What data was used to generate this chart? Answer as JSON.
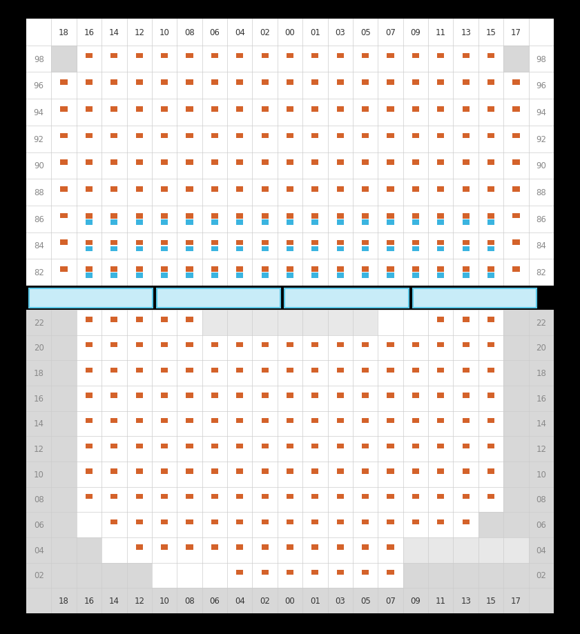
{
  "background": "#000000",
  "orange": "#d4622a",
  "blue": "#3ab4e0",
  "white": "#ffffff",
  "gray_bg": "#d8d8d8",
  "light_gray": "#e8e8e8",
  "grid_line": "#cccccc",
  "label_color": "#888888",
  "sep_bg": "#c8ecf8",
  "sep_border": "#5bc8e8",
  "col_labels": [
    "18",
    "16",
    "14",
    "12",
    "10",
    "08",
    "06",
    "04",
    "02",
    "00",
    "01",
    "03",
    "05",
    "07",
    "09",
    "11",
    "13",
    "15",
    "17"
  ],
  "top_rows": [
    "98",
    "96",
    "94",
    "92",
    "90",
    "88",
    "86",
    "84",
    "82"
  ],
  "bot_rows": [
    "22",
    "20",
    "18",
    "16",
    "14",
    "12",
    "10",
    "08",
    "06",
    "04",
    "02"
  ],
  "top_orange": {
    "98": [
      1,
      2,
      3,
      4,
      5,
      6,
      7,
      8,
      9,
      10,
      11,
      12,
      13,
      14,
      15,
      16,
      17
    ],
    "96": [
      0,
      1,
      2,
      3,
      4,
      5,
      6,
      7,
      8,
      9,
      10,
      11,
      12,
      13,
      14,
      15,
      16,
      17,
      18
    ],
    "94": [
      0,
      1,
      2,
      3,
      4,
      5,
      6,
      7,
      8,
      9,
      10,
      11,
      12,
      13,
      14,
      15,
      16,
      17,
      18
    ],
    "92": [
      0,
      1,
      2,
      3,
      4,
      5,
      6,
      7,
      8,
      9,
      10,
      11,
      12,
      13,
      14,
      15,
      16,
      17,
      18
    ],
    "90": [
      0,
      1,
      2,
      3,
      4,
      5,
      6,
      7,
      8,
      9,
      10,
      11,
      12,
      13,
      14,
      15,
      16,
      17,
      18
    ],
    "88": [
      0,
      1,
      2,
      3,
      4,
      5,
      6,
      7,
      8,
      9,
      10,
      11,
      12,
      13,
      14,
      15,
      16,
      17,
      18
    ],
    "86": [
      0,
      1,
      2,
      3,
      4,
      5,
      6,
      7,
      8,
      9,
      10,
      11,
      12,
      13,
      14,
      15,
      16,
      17,
      18
    ],
    "84": [
      0,
      1,
      2,
      3,
      4,
      5,
      6,
      7,
      8,
      9,
      10,
      11,
      12,
      13,
      14,
      15,
      16,
      17,
      18
    ],
    "82": [
      0,
      1,
      2,
      3,
      4,
      5,
      6,
      7,
      8,
      9,
      10,
      11,
      12,
      13,
      14,
      15,
      16,
      17,
      18
    ]
  },
  "top_blue": {
    "86": [
      1,
      2,
      3,
      4,
      5,
      6,
      7,
      8,
      9,
      10,
      11,
      12,
      13,
      14,
      15,
      16,
      17
    ],
    "84": [
      1,
      2,
      3,
      4,
      5,
      6,
      7,
      8,
      9,
      10,
      11,
      12,
      13,
      14,
      15,
      16,
      17
    ],
    "82": [
      1,
      2,
      3,
      4,
      5,
      6,
      7,
      8,
      9,
      10,
      11,
      12,
      13,
      14,
      15,
      16,
      17
    ]
  },
  "top_gray_cells": {
    "98": [
      0,
      18
    ]
  },
  "bot_gray_left": {
    "22": 1,
    "20": 1,
    "18": 1,
    "16": 1,
    "14": 1,
    "12": 1,
    "10": 1,
    "08": 1,
    "06": 1,
    "04": 2,
    "02": 4
  },
  "bot_gray_right": {
    "22": 1,
    "20": 1,
    "18": 1,
    "16": 1,
    "14": 1,
    "12": 1,
    "10": 1,
    "08": 1,
    "06": 2,
    "04": 3,
    "02": 5
  },
  "bot_light_middle": {
    "22": [
      6,
      7,
      8,
      9,
      10,
      11,
      12
    ],
    "20": [],
    "18": [],
    "16": [],
    "14": [],
    "12": [],
    "10": [],
    "08": [],
    "06": [],
    "04": [
      14,
      15,
      16,
      17,
      18
    ],
    "02": []
  },
  "bot_orange": {
    "22": [
      1,
      2,
      3,
      4,
      5,
      15,
      16,
      17
    ],
    "20": [
      1,
      2,
      3,
      4,
      5,
      6,
      7,
      8,
      9,
      10,
      11,
      12,
      13,
      14,
      15,
      16,
      17
    ],
    "18": [
      1,
      2,
      3,
      4,
      5,
      6,
      7,
      8,
      9,
      10,
      11,
      12,
      13,
      14,
      15,
      16,
      17
    ],
    "16": [
      1,
      2,
      3,
      4,
      5,
      6,
      7,
      8,
      9,
      10,
      11,
      12,
      13,
      14,
      15,
      16,
      17
    ],
    "14": [
      1,
      2,
      3,
      4,
      5,
      6,
      7,
      8,
      9,
      10,
      11,
      12,
      13,
      14,
      15,
      16,
      17
    ],
    "12": [
      1,
      2,
      3,
      4,
      5,
      6,
      7,
      8,
      9,
      10,
      11,
      12,
      13,
      14,
      15,
      16,
      17
    ],
    "10": [
      1,
      2,
      3,
      4,
      5,
      6,
      7,
      8,
      9,
      10,
      11,
      12,
      13,
      14,
      15,
      16,
      17
    ],
    "08": [
      1,
      2,
      3,
      4,
      5,
      6,
      7,
      8,
      9,
      10,
      11,
      12,
      13,
      14,
      15,
      16,
      17
    ],
    "06": [
      2,
      3,
      4,
      5,
      6,
      7,
      8,
      9,
      10,
      11,
      12,
      13,
      14,
      15,
      16
    ],
    "04": [
      3,
      4,
      5,
      6,
      7,
      8,
      9,
      10,
      11,
      12,
      13
    ],
    "02": [
      7,
      8,
      9,
      10,
      11,
      12,
      13
    ]
  }
}
